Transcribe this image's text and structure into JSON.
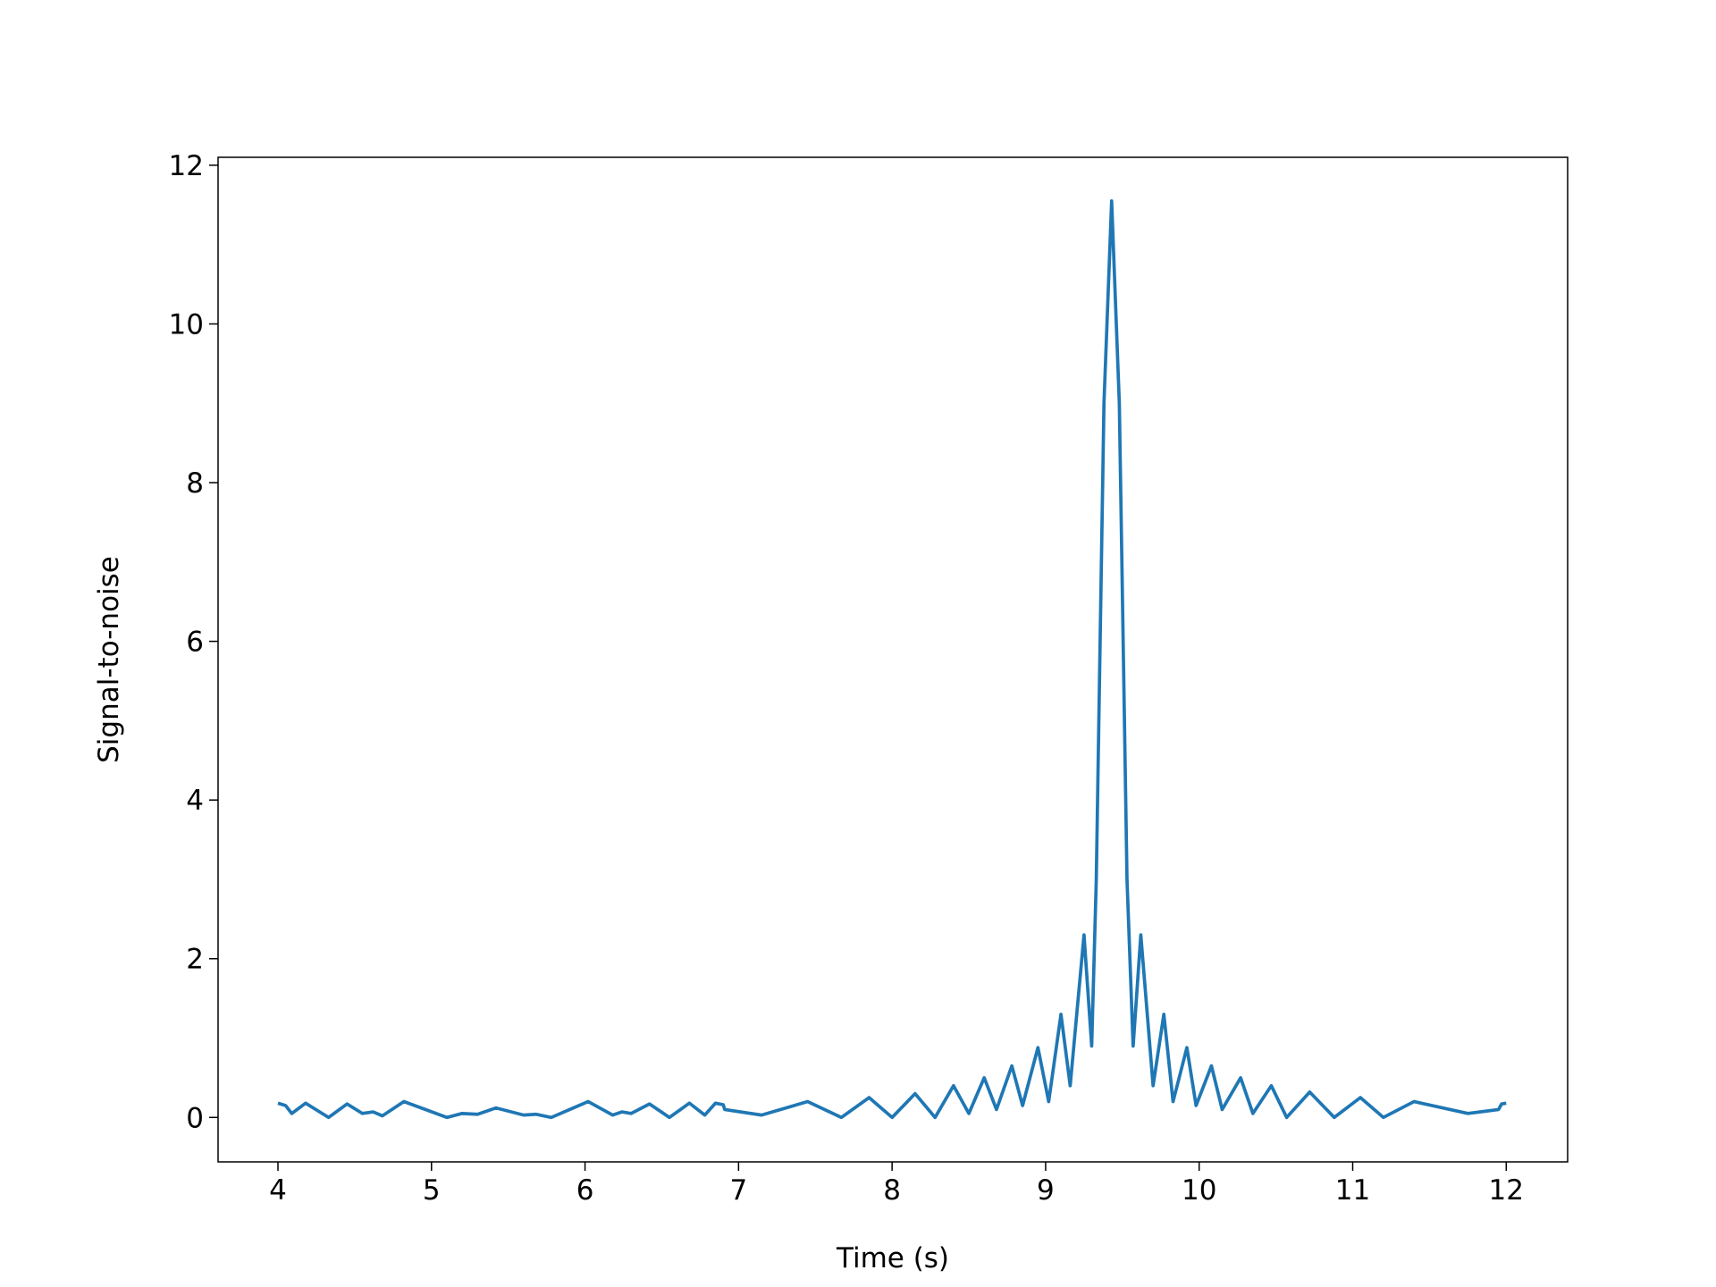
{
  "chart_data": {
    "type": "line",
    "x_label": "Time (s)",
    "y_label": "Signal-to-noise",
    "x": [
      4.0,
      4.05,
      4.09,
      4.18,
      4.33,
      4.45,
      4.55,
      4.62,
      4.68,
      4.82,
      5.1,
      5.2,
      5.3,
      5.42,
      5.6,
      5.68,
      5.78,
      6.02,
      6.18,
      6.24,
      6.3,
      6.42,
      6.55,
      6.68,
      6.78,
      6.85,
      6.9,
      6.91,
      7.15,
      7.45,
      7.67,
      7.85,
      8.0,
      8.15,
      8.28,
      8.4,
      8.5,
      8.6,
      8.68,
      8.78,
      8.85,
      8.95,
      9.02,
      9.1,
      9.16,
      9.25,
      9.3,
      9.33,
      9.38,
      9.43,
      9.48,
      9.53,
      9.57,
      9.62,
      9.7,
      9.77,
      9.83,
      9.92,
      9.98,
      10.08,
      10.15,
      10.27,
      10.35,
      10.47,
      10.57,
      10.72,
      10.88,
      11.05,
      11.2,
      11.4,
      11.75,
      11.95,
      11.97,
      12.0
    ],
    "series": [
      {
        "name": "Signal-to-noise",
        "color": "#1f77b4",
        "values": [
          0.18,
          0.15,
          0.05,
          0.18,
          0.0,
          0.17,
          0.05,
          0.07,
          0.02,
          0.2,
          0.0,
          0.05,
          0.04,
          0.12,
          0.03,
          0.04,
          0.0,
          0.2,
          0.03,
          0.07,
          0.05,
          0.17,
          0.0,
          0.18,
          0.03,
          0.18,
          0.16,
          0.1,
          0.03,
          0.2,
          0.0,
          0.25,
          0.0,
          0.3,
          0.0,
          0.4,
          0.05,
          0.5,
          0.1,
          0.65,
          0.15,
          0.88,
          0.2,
          1.3,
          0.4,
          2.3,
          0.9,
          3.0,
          9.0,
          11.55,
          9.0,
          3.0,
          0.9,
          2.3,
          0.4,
          1.3,
          0.2,
          0.88,
          0.15,
          0.65,
          0.1,
          0.5,
          0.05,
          0.4,
          0.0,
          0.32,
          0.0,
          0.25,
          0.0,
          0.2,
          0.05,
          0.1,
          0.17,
          0.18
        ]
      }
    ],
    "xlim": [
      3.61,
      12.4
    ],
    "ylim": [
      -0.56,
      12.1
    ],
    "xticks": [
      4,
      5,
      6,
      7,
      8,
      9,
      10,
      11,
      12
    ],
    "yticks": [
      0,
      2,
      4,
      6,
      8,
      10,
      12
    ]
  }
}
